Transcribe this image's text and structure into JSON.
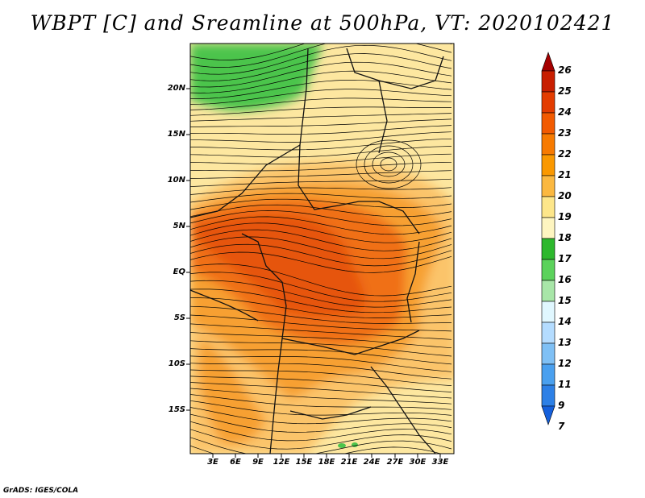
{
  "title": "WBPT [C] and Sreamline at 500hPa, VT: 2020102421",
  "credit": "GrADS: IGES/COLA",
  "map": {
    "lat_labels": [
      "20N",
      "15N",
      "10N",
      "5N",
      "EQ",
      "5S",
      "10S",
      "15S"
    ],
    "lon_labels": [
      "3E",
      "6E",
      "9E",
      "12E",
      "15E",
      "18E",
      "21E",
      "24E",
      "27E",
      "30E",
      "33E"
    ]
  },
  "colorbar": {
    "labels": [
      "26",
      "25",
      "24",
      "23",
      "22",
      "21",
      "20",
      "19",
      "18",
      "17",
      "16",
      "15",
      "14",
      "13",
      "12",
      "11",
      "9",
      "7"
    ],
    "colors": [
      "#a50000",
      "#c81e00",
      "#e33c00",
      "#f25a00",
      "#f77a00",
      "#fa9800",
      "#fbb840",
      "#fde68a",
      "#fef5c0",
      "#2db82d",
      "#5bd25b",
      "#a8e6a8",
      "#e0f7ff",
      "#b4dcff",
      "#7fc0f5",
      "#4aa0ef",
      "#2d80e6",
      "#1560dc"
    ]
  },
  "field_colors": {
    "green": "#4cc44c",
    "pale": "#fde7a0",
    "light_orange": "#fbc46a",
    "orange": "#f7a030",
    "dark_orange": "#f07018",
    "red_orange": "#e65510"
  }
}
